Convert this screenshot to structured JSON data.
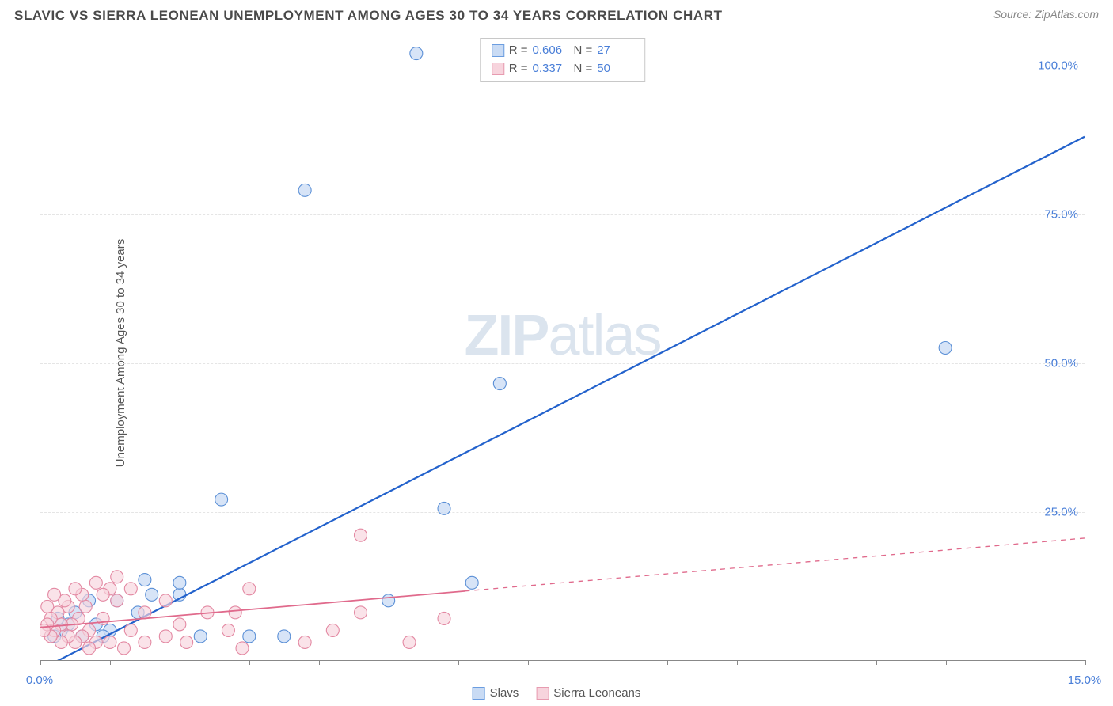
{
  "title": "SLAVIC VS SIERRA LEONEAN UNEMPLOYMENT AMONG AGES 30 TO 34 YEARS CORRELATION CHART",
  "source": "Source: ZipAtlas.com",
  "ylabel": "Unemployment Among Ages 30 to 34 years",
  "watermark_zip": "ZIP",
  "watermark_atlas": "atlas",
  "chart": {
    "type": "scatter",
    "xlim": [
      0,
      15
    ],
    "ylim": [
      0,
      105
    ],
    "x_ticks_major": [
      0,
      5,
      10,
      15
    ],
    "x_ticks_minor": [
      1,
      2,
      3,
      4,
      6,
      7,
      8,
      9,
      11,
      12,
      13,
      14
    ],
    "y_gridlines": [
      25,
      50,
      75,
      100
    ],
    "x_labels": [
      {
        "v": 0,
        "t": "0.0%"
      },
      {
        "v": 15,
        "t": "15.0%"
      }
    ],
    "y_labels": [
      {
        "v": 25,
        "t": "25.0%"
      },
      {
        "v": 50,
        "t": "50.0%"
      },
      {
        "v": 75,
        "t": "75.0%"
      },
      {
        "v": 100,
        "t": "100.0%"
      }
    ],
    "stats": [
      {
        "color_fill": "#c9dbf4",
        "color_stroke": "#6b9de0",
        "r_label": "R =",
        "r": "0.606",
        "n_label": "N =",
        "n": "27"
      },
      {
        "color_fill": "#f7d4dd",
        "color_stroke": "#e79bb0",
        "r_label": "R =",
        "r": "0.337",
        "n_label": "N =",
        "n": "50"
      }
    ],
    "legend": [
      {
        "label": "Slavs",
        "fill": "#c9dbf4",
        "stroke": "#6b9de0"
      },
      {
        "label": "Sierra Leoneans",
        "fill": "#f7d4dd",
        "stroke": "#e79bb0"
      }
    ],
    "series": [
      {
        "name": "Slavs",
        "marker_fill": "#c9dbf4",
        "marker_stroke": "#5a8fd6",
        "marker_opacity": 0.75,
        "marker_r": 8,
        "trend_color": "#2362cc",
        "trend_width": 2.2,
        "trend_solid_until_x": 15,
        "trend_dash_until_x": 15,
        "trend": {
          "x1": 0.1,
          "y1": -1,
          "x2": 15,
          "y2": 88
        },
        "points": [
          {
            "x": 5.4,
            "y": 102
          },
          {
            "x": 3.8,
            "y": 79
          },
          {
            "x": 13.0,
            "y": 52.5
          },
          {
            "x": 6.6,
            "y": 46.5
          },
          {
            "x": 2.6,
            "y": 27
          },
          {
            "x": 5.8,
            "y": 25.5
          },
          {
            "x": 6.2,
            "y": 13
          },
          {
            "x": 5.0,
            "y": 10
          },
          {
            "x": 3.5,
            "y": 4
          },
          {
            "x": 3.0,
            "y": 4
          },
          {
            "x": 2.0,
            "y": 11
          },
          {
            "x": 2.3,
            "y": 4
          },
          {
            "x": 1.5,
            "y": 13.5
          },
          {
            "x": 1.4,
            "y": 8
          },
          {
            "x": 1.0,
            "y": 5
          },
          {
            "x": 0.8,
            "y": 6
          },
          {
            "x": 0.6,
            "y": 4
          },
          {
            "x": 0.5,
            "y": 8
          },
          {
            "x": 0.4,
            "y": 6
          },
          {
            "x": 0.3,
            "y": 5
          },
          {
            "x": 0.25,
            "y": 7
          },
          {
            "x": 0.2,
            "y": 4
          },
          {
            "x": 1.6,
            "y": 11
          },
          {
            "x": 1.1,
            "y": 10
          },
          {
            "x": 0.9,
            "y": 4
          },
          {
            "x": 2.0,
            "y": 13
          },
          {
            "x": 0.7,
            "y": 10
          }
        ]
      },
      {
        "name": "Sierra Leoneans",
        "marker_fill": "#f7d4dd",
        "marker_stroke": "#e388a2",
        "marker_opacity": 0.65,
        "marker_r": 8,
        "trend_color": "#e06a8c",
        "trend_width": 1.8,
        "trend_solid_until_x": 6.1,
        "trend_dash_until_x": 15,
        "trend": {
          "x1": 0,
          "y1": 5.5,
          "x2": 15,
          "y2": 20.5
        },
        "points": [
          {
            "x": 4.6,
            "y": 21
          },
          {
            "x": 5.8,
            "y": 7
          },
          {
            "x": 5.3,
            "y": 3
          },
          {
            "x": 4.6,
            "y": 8
          },
          {
            "x": 4.2,
            "y": 5
          },
          {
            "x": 3.8,
            "y": 3
          },
          {
            "x": 3.0,
            "y": 12
          },
          {
            "x": 2.9,
            "y": 2
          },
          {
            "x": 2.8,
            "y": 8
          },
          {
            "x": 2.7,
            "y": 5
          },
          {
            "x": 2.4,
            "y": 8
          },
          {
            "x": 2.1,
            "y": 3
          },
          {
            "x": 2.0,
            "y": 6
          },
          {
            "x": 1.8,
            "y": 4
          },
          {
            "x": 1.8,
            "y": 10
          },
          {
            "x": 1.5,
            "y": 3
          },
          {
            "x": 1.5,
            "y": 8
          },
          {
            "x": 1.3,
            "y": 12
          },
          {
            "x": 1.3,
            "y": 5
          },
          {
            "x": 1.2,
            "y": 2
          },
          {
            "x": 1.1,
            "y": 10
          },
          {
            "x": 1.1,
            "y": 14
          },
          {
            "x": 1.0,
            "y": 12
          },
          {
            "x": 1.0,
            "y": 3
          },
          {
            "x": 0.9,
            "y": 7
          },
          {
            "x": 0.9,
            "y": 11
          },
          {
            "x": 0.8,
            "y": 3
          },
          {
            "x": 0.8,
            "y": 13
          },
          {
            "x": 0.7,
            "y": 5
          },
          {
            "x": 0.7,
            "y": 2
          },
          {
            "x": 0.65,
            "y": 9
          },
          {
            "x": 0.6,
            "y": 11
          },
          {
            "x": 0.6,
            "y": 4
          },
          {
            "x": 0.55,
            "y": 7
          },
          {
            "x": 0.5,
            "y": 3
          },
          {
            "x": 0.5,
            "y": 12
          },
          {
            "x": 0.45,
            "y": 6
          },
          {
            "x": 0.4,
            "y": 9
          },
          {
            "x": 0.4,
            "y": 4
          },
          {
            "x": 0.35,
            "y": 10
          },
          {
            "x": 0.3,
            "y": 6
          },
          {
            "x": 0.3,
            "y": 3
          },
          {
            "x": 0.25,
            "y": 8
          },
          {
            "x": 0.2,
            "y": 5
          },
          {
            "x": 0.2,
            "y": 11
          },
          {
            "x": 0.15,
            "y": 7
          },
          {
            "x": 0.15,
            "y": 4
          },
          {
            "x": 0.1,
            "y": 9
          },
          {
            "x": 0.1,
            "y": 6
          },
          {
            "x": 0.05,
            "y": 5
          }
        ]
      }
    ]
  }
}
